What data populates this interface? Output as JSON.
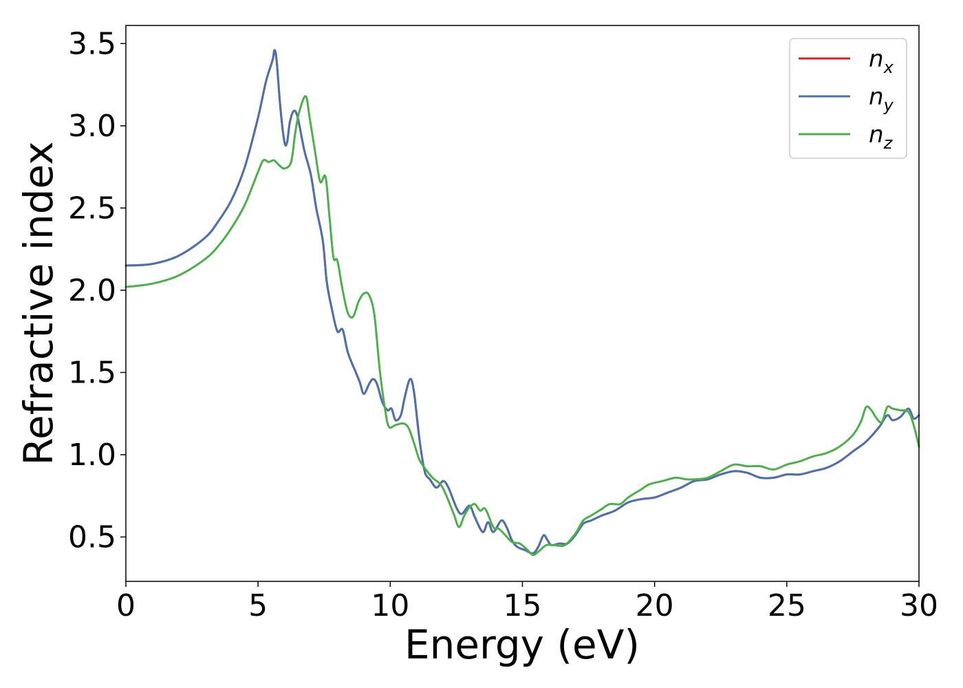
{
  "chart_data": {
    "type": "line",
    "xlabel": "Energy (eV)",
    "ylabel": "Refractive index",
    "xlim": [
      0,
      30
    ],
    "ylim": [
      0.23,
      3.61
    ],
    "xticks": [
      0,
      5,
      10,
      15,
      20,
      25,
      30
    ],
    "xtick_labels": [
      "0",
      "5",
      "10",
      "15",
      "20",
      "25",
      "30"
    ],
    "yticks": [
      0.5,
      1.0,
      1.5,
      2.0,
      2.5,
      3.0,
      3.5
    ],
    "ytick_labels": [
      "0.5",
      "1.0",
      "1.5",
      "2.0",
      "2.5",
      "3.0",
      "3.5"
    ],
    "grid": false,
    "legend_position": "top-right",
    "series": [
      {
        "name": "n",
        "subscript": "x",
        "color": "#e41a1c",
        "points": [
          [
            0,
            2.15
          ],
          [
            1,
            2.16
          ],
          [
            2,
            2.21
          ],
          [
            3,
            2.32
          ],
          [
            3.5,
            2.42
          ],
          [
            4,
            2.55
          ],
          [
            4.5,
            2.75
          ],
          [
            5,
            3.05
          ],
          [
            5.3,
            3.27
          ],
          [
            5.55,
            3.4
          ],
          [
            5.62,
            3.46
          ],
          [
            5.7,
            3.4
          ],
          [
            5.85,
            3.1
          ],
          [
            6.0,
            2.9
          ],
          [
            6.1,
            2.9
          ],
          [
            6.2,
            3.02
          ],
          [
            6.35,
            3.09
          ],
          [
            6.5,
            3.05
          ],
          [
            6.75,
            2.85
          ],
          [
            7.0,
            2.7
          ],
          [
            7.2,
            2.5
          ],
          [
            7.45,
            2.3
          ],
          [
            7.6,
            2.05
          ],
          [
            7.8,
            1.88
          ],
          [
            8.0,
            1.75
          ],
          [
            8.2,
            1.76
          ],
          [
            8.4,
            1.62
          ],
          [
            8.7,
            1.5
          ],
          [
            8.85,
            1.44
          ],
          [
            9.0,
            1.37
          ],
          [
            9.2,
            1.43
          ],
          [
            9.35,
            1.46
          ],
          [
            9.5,
            1.43
          ],
          [
            9.7,
            1.32
          ],
          [
            9.9,
            1.27
          ],
          [
            10.05,
            1.28
          ],
          [
            10.2,
            1.21
          ],
          [
            10.4,
            1.24
          ],
          [
            10.55,
            1.35
          ],
          [
            10.75,
            1.46
          ],
          [
            10.9,
            1.38
          ],
          [
            11.1,
            1.1
          ],
          [
            11.3,
            0.9
          ],
          [
            11.5,
            0.85
          ],
          [
            11.75,
            0.8
          ],
          [
            12.0,
            0.84
          ],
          [
            12.2,
            0.8
          ],
          [
            12.5,
            0.68
          ],
          [
            12.7,
            0.64
          ],
          [
            13.0,
            0.69
          ],
          [
            13.2,
            0.62
          ],
          [
            13.5,
            0.53
          ],
          [
            13.7,
            0.59
          ],
          [
            13.9,
            0.53
          ],
          [
            14.2,
            0.6
          ],
          [
            14.4,
            0.56
          ],
          [
            14.6,
            0.48
          ],
          [
            14.8,
            0.44
          ],
          [
            15.1,
            0.42
          ],
          [
            15.4,
            0.4
          ],
          [
            15.6,
            0.44
          ],
          [
            15.8,
            0.51
          ],
          [
            15.95,
            0.48
          ],
          [
            16.1,
            0.45
          ],
          [
            16.4,
            0.46
          ],
          [
            16.7,
            0.46
          ],
          [
            17.0,
            0.51
          ],
          [
            17.3,
            0.58
          ],
          [
            17.6,
            0.6
          ],
          [
            18.0,
            0.63
          ],
          [
            18.5,
            0.66
          ],
          [
            19.0,
            0.71
          ],
          [
            19.5,
            0.73
          ],
          [
            20.0,
            0.74
          ],
          [
            20.5,
            0.77
          ],
          [
            21.0,
            0.8
          ],
          [
            21.5,
            0.84
          ],
          [
            22.0,
            0.85
          ],
          [
            22.5,
            0.88
          ],
          [
            23.0,
            0.9
          ],
          [
            23.5,
            0.89
          ],
          [
            24.0,
            0.86
          ],
          [
            24.5,
            0.86
          ],
          [
            25.0,
            0.88
          ],
          [
            25.5,
            0.88
          ],
          [
            26.0,
            0.9
          ],
          [
            26.5,
            0.92
          ],
          [
            27.0,
            0.96
          ],
          [
            27.5,
            1.02
          ],
          [
            28.0,
            1.08
          ],
          [
            28.5,
            1.17
          ],
          [
            28.8,
            1.24
          ],
          [
            29.0,
            1.21
          ],
          [
            29.3,
            1.23
          ],
          [
            29.6,
            1.28
          ],
          [
            29.8,
            1.22
          ],
          [
            30.0,
            1.24
          ]
        ]
      },
      {
        "name": "n",
        "subscript": "y",
        "color": "#4a73ad",
        "points": [
          [
            0,
            2.15
          ],
          [
            1,
            2.16
          ],
          [
            2,
            2.21
          ],
          [
            3,
            2.32
          ],
          [
            3.5,
            2.42
          ],
          [
            4,
            2.55
          ],
          [
            4.5,
            2.75
          ],
          [
            5,
            3.05
          ],
          [
            5.3,
            3.27
          ],
          [
            5.55,
            3.4
          ],
          [
            5.62,
            3.46
          ],
          [
            5.7,
            3.4
          ],
          [
            5.85,
            3.1
          ],
          [
            6.0,
            2.9
          ],
          [
            6.1,
            2.9
          ],
          [
            6.2,
            3.02
          ],
          [
            6.35,
            3.09
          ],
          [
            6.5,
            3.05
          ],
          [
            6.75,
            2.85
          ],
          [
            7.0,
            2.7
          ],
          [
            7.2,
            2.5
          ],
          [
            7.45,
            2.3
          ],
          [
            7.6,
            2.05
          ],
          [
            7.8,
            1.88
          ],
          [
            8.0,
            1.75
          ],
          [
            8.2,
            1.76
          ],
          [
            8.4,
            1.62
          ],
          [
            8.7,
            1.5
          ],
          [
            8.85,
            1.44
          ],
          [
            9.0,
            1.37
          ],
          [
            9.2,
            1.43
          ],
          [
            9.35,
            1.46
          ],
          [
            9.5,
            1.43
          ],
          [
            9.7,
            1.32
          ],
          [
            9.9,
            1.27
          ],
          [
            10.05,
            1.28
          ],
          [
            10.2,
            1.21
          ],
          [
            10.4,
            1.24
          ],
          [
            10.55,
            1.35
          ],
          [
            10.75,
            1.46
          ],
          [
            10.9,
            1.38
          ],
          [
            11.1,
            1.1
          ],
          [
            11.3,
            0.9
          ],
          [
            11.5,
            0.85
          ],
          [
            11.75,
            0.8
          ],
          [
            12.0,
            0.84
          ],
          [
            12.2,
            0.8
          ],
          [
            12.5,
            0.68
          ],
          [
            12.7,
            0.64
          ],
          [
            13.0,
            0.69
          ],
          [
            13.2,
            0.62
          ],
          [
            13.5,
            0.53
          ],
          [
            13.7,
            0.59
          ],
          [
            13.9,
            0.53
          ],
          [
            14.2,
            0.6
          ],
          [
            14.4,
            0.56
          ],
          [
            14.6,
            0.48
          ],
          [
            14.8,
            0.44
          ],
          [
            15.1,
            0.42
          ],
          [
            15.4,
            0.4
          ],
          [
            15.6,
            0.44
          ],
          [
            15.8,
            0.51
          ],
          [
            15.95,
            0.48
          ],
          [
            16.1,
            0.45
          ],
          [
            16.4,
            0.46
          ],
          [
            16.7,
            0.46
          ],
          [
            17.0,
            0.51
          ],
          [
            17.3,
            0.58
          ],
          [
            17.6,
            0.6
          ],
          [
            18.0,
            0.63
          ],
          [
            18.5,
            0.66
          ],
          [
            19.0,
            0.71
          ],
          [
            19.5,
            0.73
          ],
          [
            20.0,
            0.74
          ],
          [
            20.5,
            0.77
          ],
          [
            21.0,
            0.8
          ],
          [
            21.5,
            0.84
          ],
          [
            22.0,
            0.85
          ],
          [
            22.5,
            0.88
          ],
          [
            23.0,
            0.9
          ],
          [
            23.5,
            0.89
          ],
          [
            24.0,
            0.86
          ],
          [
            24.5,
            0.86
          ],
          [
            25.0,
            0.88
          ],
          [
            25.5,
            0.88
          ],
          [
            26.0,
            0.9
          ],
          [
            26.5,
            0.92
          ],
          [
            27.0,
            0.96
          ],
          [
            27.5,
            1.02
          ],
          [
            28.0,
            1.08
          ],
          [
            28.5,
            1.17
          ],
          [
            28.8,
            1.24
          ],
          [
            29.0,
            1.21
          ],
          [
            29.3,
            1.23
          ],
          [
            29.6,
            1.28
          ],
          [
            29.8,
            1.22
          ],
          [
            30.0,
            1.24
          ]
        ]
      },
      {
        "name": "n",
        "subscript": "z",
        "color": "#4daf4a",
        "points": [
          [
            0,
            2.02
          ],
          [
            1,
            2.04
          ],
          [
            2,
            2.09
          ],
          [
            3,
            2.19
          ],
          [
            3.5,
            2.27
          ],
          [
            4,
            2.38
          ],
          [
            4.5,
            2.52
          ],
          [
            5.0,
            2.72
          ],
          [
            5.2,
            2.79
          ],
          [
            5.4,
            2.78
          ],
          [
            5.6,
            2.79
          ],
          [
            5.8,
            2.76
          ],
          [
            6.0,
            2.74
          ],
          [
            6.25,
            2.78
          ],
          [
            6.4,
            2.95
          ],
          [
            6.55,
            3.08
          ],
          [
            6.8,
            3.18
          ],
          [
            6.95,
            3.05
          ],
          [
            7.15,
            2.85
          ],
          [
            7.35,
            2.66
          ],
          [
            7.55,
            2.69
          ],
          [
            7.7,
            2.45
          ],
          [
            7.85,
            2.2
          ],
          [
            8.0,
            2.18
          ],
          [
            8.2,
            2.0
          ],
          [
            8.4,
            1.86
          ],
          [
            8.6,
            1.84
          ],
          [
            8.8,
            1.93
          ],
          [
            9.0,
            1.98
          ],
          [
            9.2,
            1.97
          ],
          [
            9.4,
            1.85
          ],
          [
            9.6,
            1.52
          ],
          [
            9.8,
            1.28
          ],
          [
            9.95,
            1.17
          ],
          [
            10.2,
            1.18
          ],
          [
            10.5,
            1.19
          ],
          [
            10.7,
            1.16
          ],
          [
            10.9,
            1.07
          ],
          [
            11.1,
            0.97
          ],
          [
            11.3,
            0.92
          ],
          [
            11.6,
            0.86
          ],
          [
            11.9,
            0.82
          ],
          [
            12.1,
            0.76
          ],
          [
            12.4,
            0.64
          ],
          [
            12.6,
            0.56
          ],
          [
            12.8,
            0.63
          ],
          [
            13.0,
            0.68
          ],
          [
            13.2,
            0.7
          ],
          [
            13.4,
            0.66
          ],
          [
            13.6,
            0.67
          ],
          [
            13.9,
            0.56
          ],
          [
            14.1,
            0.55
          ],
          [
            14.3,
            0.52
          ],
          [
            14.6,
            0.47
          ],
          [
            14.9,
            0.46
          ],
          [
            15.2,
            0.42
          ],
          [
            15.4,
            0.39
          ],
          [
            15.6,
            0.41
          ],
          [
            15.9,
            0.45
          ],
          [
            16.2,
            0.45
          ],
          [
            16.6,
            0.45
          ],
          [
            17.0,
            0.52
          ],
          [
            17.3,
            0.6
          ],
          [
            17.6,
            0.63
          ],
          [
            18.0,
            0.67
          ],
          [
            18.3,
            0.7
          ],
          [
            18.7,
            0.7
          ],
          [
            19.0,
            0.74
          ],
          [
            19.5,
            0.79
          ],
          [
            19.8,
            0.82
          ],
          [
            20.3,
            0.84
          ],
          [
            20.8,
            0.86
          ],
          [
            21.2,
            0.85
          ],
          [
            21.5,
            0.85
          ],
          [
            22.0,
            0.86
          ],
          [
            22.5,
            0.9
          ],
          [
            23.0,
            0.94
          ],
          [
            23.5,
            0.93
          ],
          [
            24.0,
            0.93
          ],
          [
            24.5,
            0.91
          ],
          [
            25.0,
            0.94
          ],
          [
            25.5,
            0.96
          ],
          [
            26.0,
            0.99
          ],
          [
            26.5,
            1.01
          ],
          [
            27.0,
            1.05
          ],
          [
            27.5,
            1.12
          ],
          [
            27.8,
            1.2
          ],
          [
            28.0,
            1.29
          ],
          [
            28.2,
            1.27
          ],
          [
            28.4,
            1.22
          ],
          [
            28.6,
            1.2
          ],
          [
            28.8,
            1.29
          ],
          [
            29.0,
            1.28
          ],
          [
            29.3,
            1.27
          ],
          [
            29.6,
            1.26
          ],
          [
            29.8,
            1.18
          ],
          [
            30.0,
            1.05
          ]
        ]
      }
    ]
  }
}
